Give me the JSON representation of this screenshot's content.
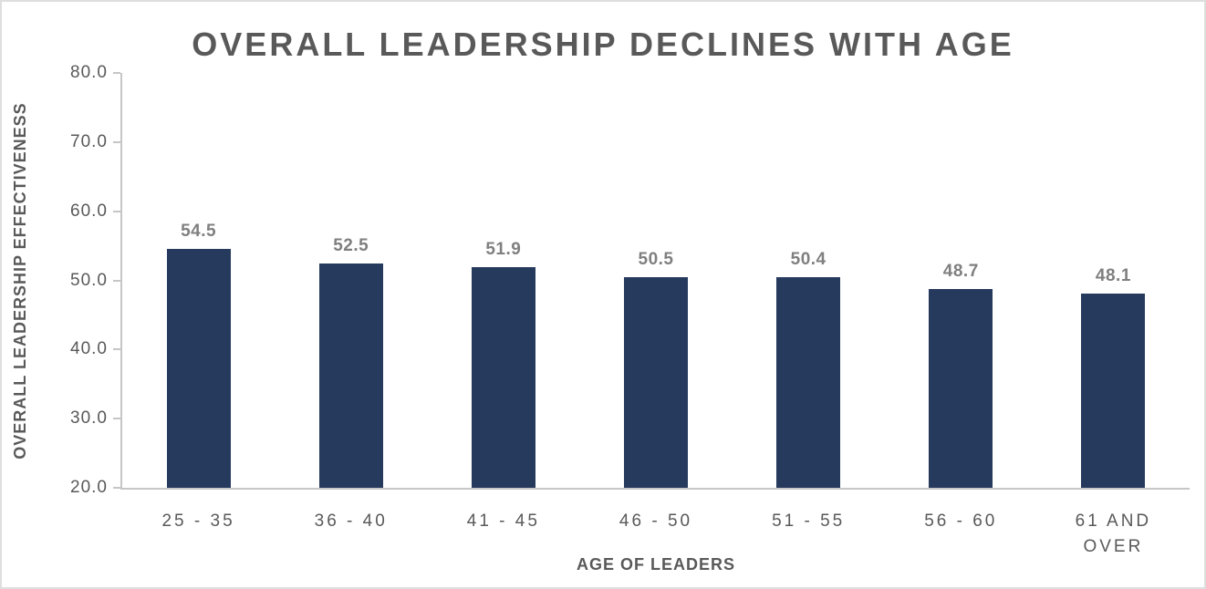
{
  "chart_data": {
    "type": "bar",
    "title": "OVERALL LEADERSHIP DECLINES WITH AGE",
    "xlabel": "AGE OF LEADERS",
    "ylabel": "OVERALL LEADERSHIP EFFECTIVENESS",
    "categories": [
      "25 - 35",
      "36 - 40",
      "41 - 45",
      "46 - 50",
      "51 - 55",
      "56 - 60",
      "61 AND OVER"
    ],
    "values": [
      54.5,
      52.5,
      51.9,
      50.5,
      50.4,
      48.7,
      48.1
    ],
    "data_labels": [
      "54.5",
      "52.5",
      "51.9",
      "50.5",
      "50.4",
      "48.7",
      "48.1"
    ],
    "ylim": [
      20,
      80
    ],
    "y_ticks": [
      80,
      70,
      60,
      50,
      40,
      30,
      20
    ],
    "y_tick_labels": [
      "80.0",
      "70.0",
      "60.0",
      "50.0",
      "40.0",
      "30.0",
      "20.0"
    ],
    "grid": false,
    "legend": "none",
    "colors": {
      "bar": "#253a5c",
      "data_label": "#7f7f7f",
      "axis_text": "#595959",
      "axis_line": "#c6c6c6"
    }
  }
}
